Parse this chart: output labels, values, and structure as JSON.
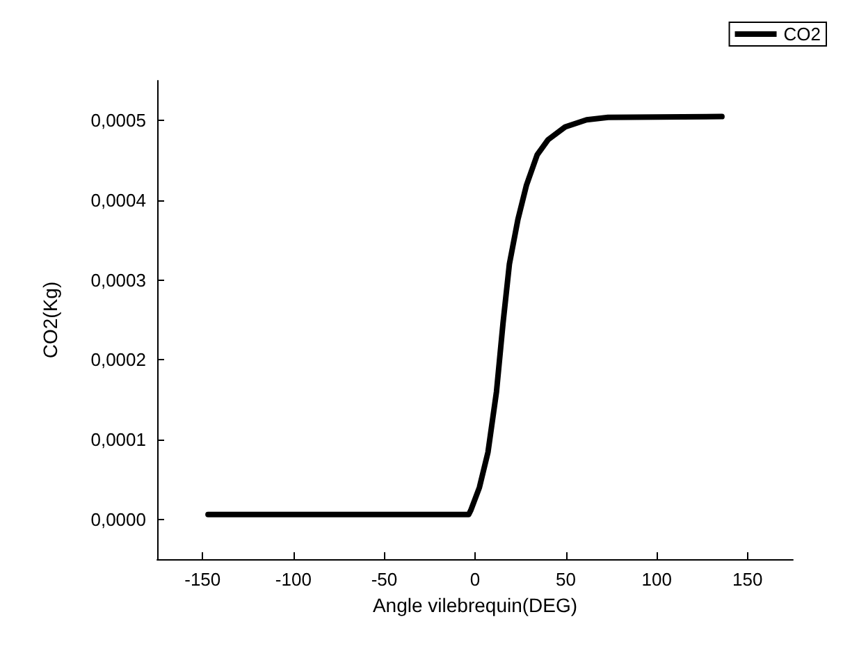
{
  "chart_data": {
    "type": "line",
    "xlabel": "Angle vilebrequin(DEG)",
    "ylabel": "CO2(Kg)",
    "xlim": [
      -175,
      175
    ],
    "xticks": [
      -150,
      -100,
      -50,
      0,
      50,
      100,
      150
    ],
    "ylim": [
      -5e-05,
      0.00055
    ],
    "yticks": [
      {
        "value": 0,
        "label": "0,0000"
      },
      {
        "value": 0.0001,
        "label": "0,0001"
      },
      {
        "value": 0.0002,
        "label": "0,0002"
      },
      {
        "value": 0.0003,
        "label": "0,0003"
      },
      {
        "value": 0.0004,
        "label": "0,0004"
      },
      {
        "value": 0.0005,
        "label": "0,0005"
      }
    ],
    "grid": false,
    "legend": "top right",
    "marker": "none",
    "line_style": "solid",
    "series": [
      {
        "name": "CO2",
        "color": "#000000",
        "x": [
          -147,
          -3.5,
          -2.4,
          2.4,
          7.1,
          11.8,
          15.4,
          18.9,
          23.6,
          28.3,
          34.2,
          40.2,
          49.6,
          61.4,
          73.2,
          135.9
        ],
        "values": [
          6e-06,
          6e-06,
          1.1e-05,
          4e-05,
          8.4e-05,
          0.00016,
          0.000246,
          0.00032,
          0.000376,
          0.000419,
          0.000457,
          0.000476,
          0.000492,
          0.000501,
          0.000504,
          0.000505
        ]
      }
    ]
  }
}
